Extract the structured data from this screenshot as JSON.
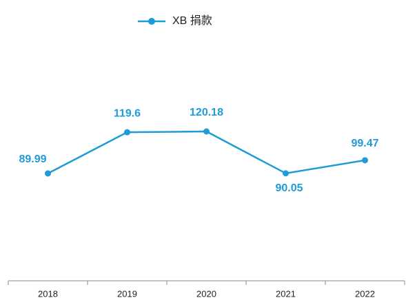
{
  "chart_data": {
    "type": "line",
    "categories": [
      "2018",
      "2019",
      "2020",
      "2021",
      "2022"
    ],
    "series": [
      {
        "name": "XB 捐款",
        "color": "#1f9bd7",
        "values": [
          89.99,
          119.6,
          120.18,
          90.05,
          99.47
        ]
      }
    ],
    "legend": "top"
  }
}
